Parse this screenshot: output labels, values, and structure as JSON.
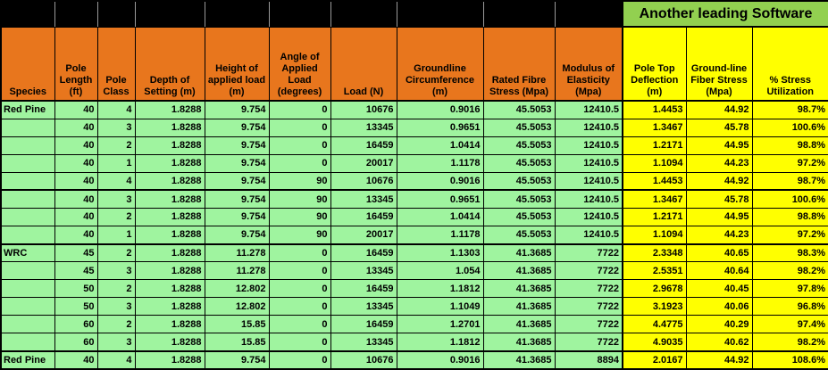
{
  "banner": {
    "label": "Another leading Software"
  },
  "colors": {
    "header_orange": "#E8761D",
    "banner_green": "#92D050",
    "data_green": "#9FF49F",
    "highlight_yellow": "#FFFF00",
    "border_black": "#000000"
  },
  "table": {
    "columns": [
      {
        "id": "species",
        "label": "Species",
        "section": "main"
      },
      {
        "id": "pole-length-ft",
        "label": "Pole Length (ft)",
        "section": "main"
      },
      {
        "id": "pole-class",
        "label": "Pole Class",
        "section": "main"
      },
      {
        "id": "depth-of-setting-m",
        "label": "Depth of Setting (m)",
        "section": "main"
      },
      {
        "id": "height-of-applied-load-m",
        "label": "Height of applied load (m)",
        "section": "main"
      },
      {
        "id": "angle-of-applied-load-degrees",
        "label": "Angle of Applied Load (degrees)",
        "section": "main"
      },
      {
        "id": "load-n",
        "label": "Load (N)",
        "section": "main"
      },
      {
        "id": "groundline-circumference-m",
        "label": "Groundline Circumference (m)",
        "section": "main"
      },
      {
        "id": "rated-fibre-stress-mpa",
        "label": "Rated Fibre Stress (Mpa)",
        "section": "main"
      },
      {
        "id": "modulus-of-elasticity-mpa",
        "label": "Modulus of Elasticity (Mpa)",
        "section": "main"
      },
      {
        "id": "pole-top-deflection-m",
        "label": "Pole Top Deflection (m)",
        "section": "comparison"
      },
      {
        "id": "groundline-fiber-stress-mpa",
        "label": "Ground-line Fiber Stress (Mpa)",
        "section": "comparison"
      },
      {
        "id": "pct-stress-utilization",
        "label": "% Stress Utilization",
        "section": "comparison"
      }
    ],
    "rows": [
      [
        "Red Pine",
        "40",
        "4",
        "1.8288",
        "9.754",
        "0",
        "10676",
        "0.9016",
        "45.5053",
        "12410.5",
        "1.4453",
        "44.92",
        "98.7%"
      ],
      [
        "",
        "40",
        "3",
        "1.8288",
        "9.754",
        "0",
        "13345",
        "0.9651",
        "45.5053",
        "12410.5",
        "1.3467",
        "45.78",
        "100.6%"
      ],
      [
        "",
        "40",
        "2",
        "1.8288",
        "9.754",
        "0",
        "16459",
        "1.0414",
        "45.5053",
        "12410.5",
        "1.2171",
        "44.95",
        "98.8%"
      ],
      [
        "",
        "40",
        "1",
        "1.8288",
        "9.754",
        "0",
        "20017",
        "1.1178",
        "45.5053",
        "12410.5",
        "1.1094",
        "44.23",
        "97.2%"
      ],
      [
        "",
        "40",
        "4",
        "1.8288",
        "9.754",
        "90",
        "10676",
        "0.9016",
        "45.5053",
        "12410.5",
        "1.4453",
        "44.92",
        "98.7%"
      ],
      [
        "",
        "40",
        "3",
        "1.8288",
        "9.754",
        "90",
        "13345",
        "0.9651",
        "45.5053",
        "12410.5",
        "1.3467",
        "45.78",
        "100.6%"
      ],
      [
        "",
        "40",
        "2",
        "1.8288",
        "9.754",
        "90",
        "16459",
        "1.0414",
        "45.5053",
        "12410.5",
        "1.2171",
        "44.95",
        "98.8%"
      ],
      [
        "",
        "40",
        "1",
        "1.8288",
        "9.754",
        "90",
        "20017",
        "1.1178",
        "45.5053",
        "12410.5",
        "1.1094",
        "44.23",
        "97.2%"
      ],
      [
        "WRC",
        "45",
        "2",
        "1.8288",
        "11.278",
        "0",
        "16459",
        "1.1303",
        "41.3685",
        "7722",
        "2.3348",
        "40.65",
        "98.3%"
      ],
      [
        "",
        "45",
        "3",
        "1.8288",
        "11.278",
        "0",
        "13345",
        "1.054",
        "41.3685",
        "7722",
        "2.5351",
        "40.64",
        "98.2%"
      ],
      [
        "",
        "50",
        "2",
        "1.8288",
        "12.802",
        "0",
        "16459",
        "1.1812",
        "41.3685",
        "7722",
        "2.9678",
        "40.45",
        "97.8%"
      ],
      [
        "",
        "50",
        "3",
        "1.8288",
        "12.802",
        "0",
        "13345",
        "1.1049",
        "41.3685",
        "7722",
        "3.1923",
        "40.06",
        "96.8%"
      ],
      [
        "",
        "60",
        "2",
        "1.8288",
        "15.85",
        "0",
        "16459",
        "1.2701",
        "41.3685",
        "7722",
        "4.4775",
        "40.29",
        "97.4%"
      ],
      [
        "",
        "60",
        "3",
        "1.8288",
        "15.85",
        "0",
        "13345",
        "1.1812",
        "41.3685",
        "7722",
        "4.9035",
        "40.62",
        "98.2%"
      ],
      [
        "Red Pine",
        "40",
        "4",
        "1.8288",
        "9.754",
        "0",
        "10676",
        "0.9016",
        "41.3685",
        "8894",
        "2.0167",
        "44.92",
        "108.6%"
      ]
    ],
    "thick_border_after_rows": [
      5,
      8,
      14
    ]
  }
}
